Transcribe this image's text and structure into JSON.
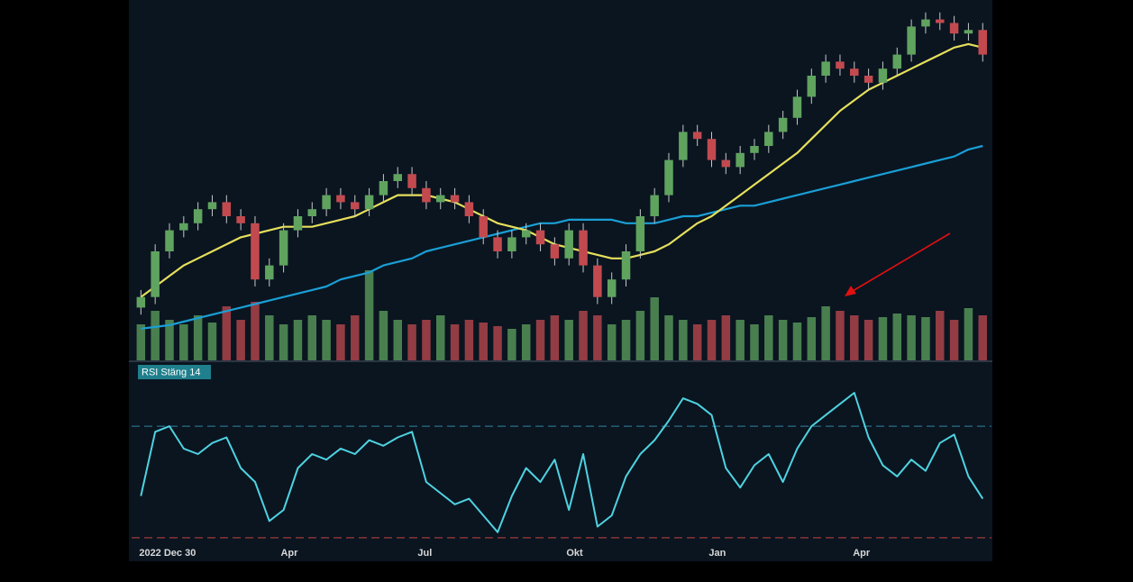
{
  "chart_data": {
    "type": "candlestick",
    "x": [
      0,
      1,
      2,
      3,
      4,
      5,
      6,
      7,
      8,
      9,
      10,
      11,
      12,
      13,
      14,
      15,
      16,
      17,
      18,
      19,
      20,
      21,
      22,
      23,
      24,
      25,
      26,
      27,
      28,
      29,
      30,
      31,
      32,
      33,
      34,
      35,
      36,
      37,
      38,
      39,
      40,
      41,
      42,
      43,
      44,
      45,
      46,
      47,
      48,
      49,
      50,
      51,
      52,
      53,
      54,
      55,
      56,
      57,
      58,
      59
    ],
    "xlim": [
      -0.4,
      59.3
    ],
    "xticks": [
      {
        "value": 0,
        "label": "2022 Dec 30"
      },
      {
        "value": 10.4,
        "label": "Apr"
      },
      {
        "value": 19.9,
        "label": "Jul"
      },
      {
        "value": 30.4,
        "label": "Okt"
      },
      {
        "value": 40.4,
        "label": "Jan"
      },
      {
        "value": 50.5,
        "label": "Apr"
      }
    ],
    "ylim": [
      0,
      100
    ],
    "up_color": "#5fa35f",
    "down_color": "#c24a4f",
    "open": [
      14,
      17,
      30,
      36,
      38,
      42,
      44,
      40,
      38,
      22,
      26,
      36,
      40,
      42,
      46,
      44,
      42,
      46,
      50,
      52,
      48,
      44,
      46,
      44,
      40,
      34,
      30,
      34,
      36,
      32,
      28,
      36,
      26,
      17,
      22,
      30,
      40,
      46,
      56,
      64,
      62,
      56,
      54,
      58,
      60,
      64,
      68,
      74,
      80,
      84,
      82,
      80,
      78,
      82,
      86,
      94,
      96,
      95,
      92,
      93
    ],
    "high": [
      19,
      32,
      38,
      40,
      44,
      46,
      46,
      42,
      40,
      28,
      38,
      42,
      44,
      48,
      48,
      46,
      48,
      52,
      54,
      54,
      50,
      48,
      48,
      46,
      42,
      36,
      36,
      38,
      38,
      34,
      38,
      38,
      28,
      24,
      32,
      42,
      48,
      58,
      66,
      66,
      64,
      58,
      60,
      62,
      66,
      70,
      76,
      82,
      86,
      86,
      84,
      82,
      84,
      88,
      96,
      98,
      98,
      97,
      95,
      95
    ],
    "low": [
      12,
      15,
      28,
      34,
      36,
      40,
      38,
      36,
      20,
      20,
      24,
      34,
      38,
      40,
      42,
      40,
      40,
      44,
      48,
      46,
      42,
      42,
      42,
      38,
      32,
      28,
      28,
      32,
      30,
      26,
      26,
      24,
      15,
      15,
      20,
      28,
      38,
      44,
      54,
      60,
      54,
      52,
      52,
      56,
      58,
      62,
      66,
      72,
      78,
      80,
      78,
      76,
      76,
      80,
      84,
      92,
      93,
      90,
      90,
      84
    ],
    "close": [
      17,
      30,
      36,
      38,
      42,
      44,
      40,
      38,
      22,
      26,
      36,
      40,
      42,
      46,
      44,
      42,
      46,
      50,
      52,
      48,
      44,
      46,
      44,
      40,
      34,
      30,
      34,
      36,
      32,
      28,
      36,
      26,
      17,
      22,
      30,
      40,
      46,
      56,
      64,
      62,
      56,
      54,
      58,
      60,
      64,
      68,
      74,
      80,
      84,
      82,
      80,
      78,
      82,
      86,
      94,
      96,
      95,
      92,
      93,
      86
    ],
    "moving_averages": [
      {
        "color": "#e6df5c",
        "values": [
          17,
          20,
          23,
          26,
          28,
          30,
          32,
          34,
          35,
          36,
          37,
          37,
          37,
          38,
          39,
          40,
          42,
          44,
          46,
          46,
          46,
          45,
          44,
          42,
          40,
          38,
          37,
          36,
          34,
          32,
          31,
          30,
          29,
          28,
          28,
          29,
          30,
          32,
          35,
          38,
          40,
          43,
          46,
          49,
          52,
          55,
          58,
          62,
          66,
          70,
          73,
          76,
          78,
          80,
          82,
          84,
          86,
          88,
          89,
          88
        ]
      },
      {
        "color": "#1a9fd6",
        "values": [
          8,
          8.5,
          9,
          10,
          11,
          12,
          13,
          14,
          15,
          16,
          17,
          18,
          19,
          20,
          22,
          23,
          24,
          26,
          27,
          28,
          30,
          31,
          32,
          33,
          34,
          35,
          36,
          37,
          38,
          38,
          39,
          39,
          39,
          39,
          38,
          38,
          38,
          39,
          40,
          40,
          41,
          42,
          43,
          43,
          44,
          45,
          46,
          47,
          48,
          49,
          50,
          51,
          52,
          53,
          54,
          55,
          56,
          57,
          59,
          60
        ]
      }
    ],
    "volume": {
      "ylim": [
        0,
        100
      ],
      "values": [
        40,
        55,
        45,
        40,
        50,
        42,
        60,
        45,
        65,
        50,
        40,
        45,
        50,
        45,
        40,
        50,
        100,
        55,
        45,
        40,
        45,
        50,
        40,
        45,
        42,
        38,
        35,
        40,
        45,
        50,
        45,
        55,
        50,
        40,
        45,
        55,
        70,
        50,
        45,
        40,
        45,
        50,
        45,
        40,
        50,
        45,
        42,
        48,
        60,
        55,
        50,
        45,
        48,
        52,
        50,
        48,
        55,
        45,
        58,
        50
      ]
    },
    "rsi": {
      "title": "RSI Stäng 14",
      "color": "#4fd2e0",
      "ylim": [
        29,
        92
      ],
      "levels": [
        {
          "value": 70,
          "color": "#2a6f86"
        },
        {
          "value": 30,
          "color": "#a03a3a"
        }
      ],
      "values": [
        45,
        68,
        70,
        62,
        60,
        64,
        66,
        55,
        50,
        36,
        40,
        55,
        60,
        58,
        62,
        60,
        65,
        63,
        66,
        68,
        50,
        46,
        42,
        44,
        38,
        32,
        45,
        55,
        50,
        58,
        40,
        60,
        34,
        38,
        52,
        60,
        65,
        72,
        80,
        78,
        74,
        55,
        48,
        56,
        60,
        50,
        62,
        70,
        74,
        78,
        82,
        66,
        56,
        52,
        58,
        54,
        64,
        67,
        52,
        44
      ]
    }
  }
}
